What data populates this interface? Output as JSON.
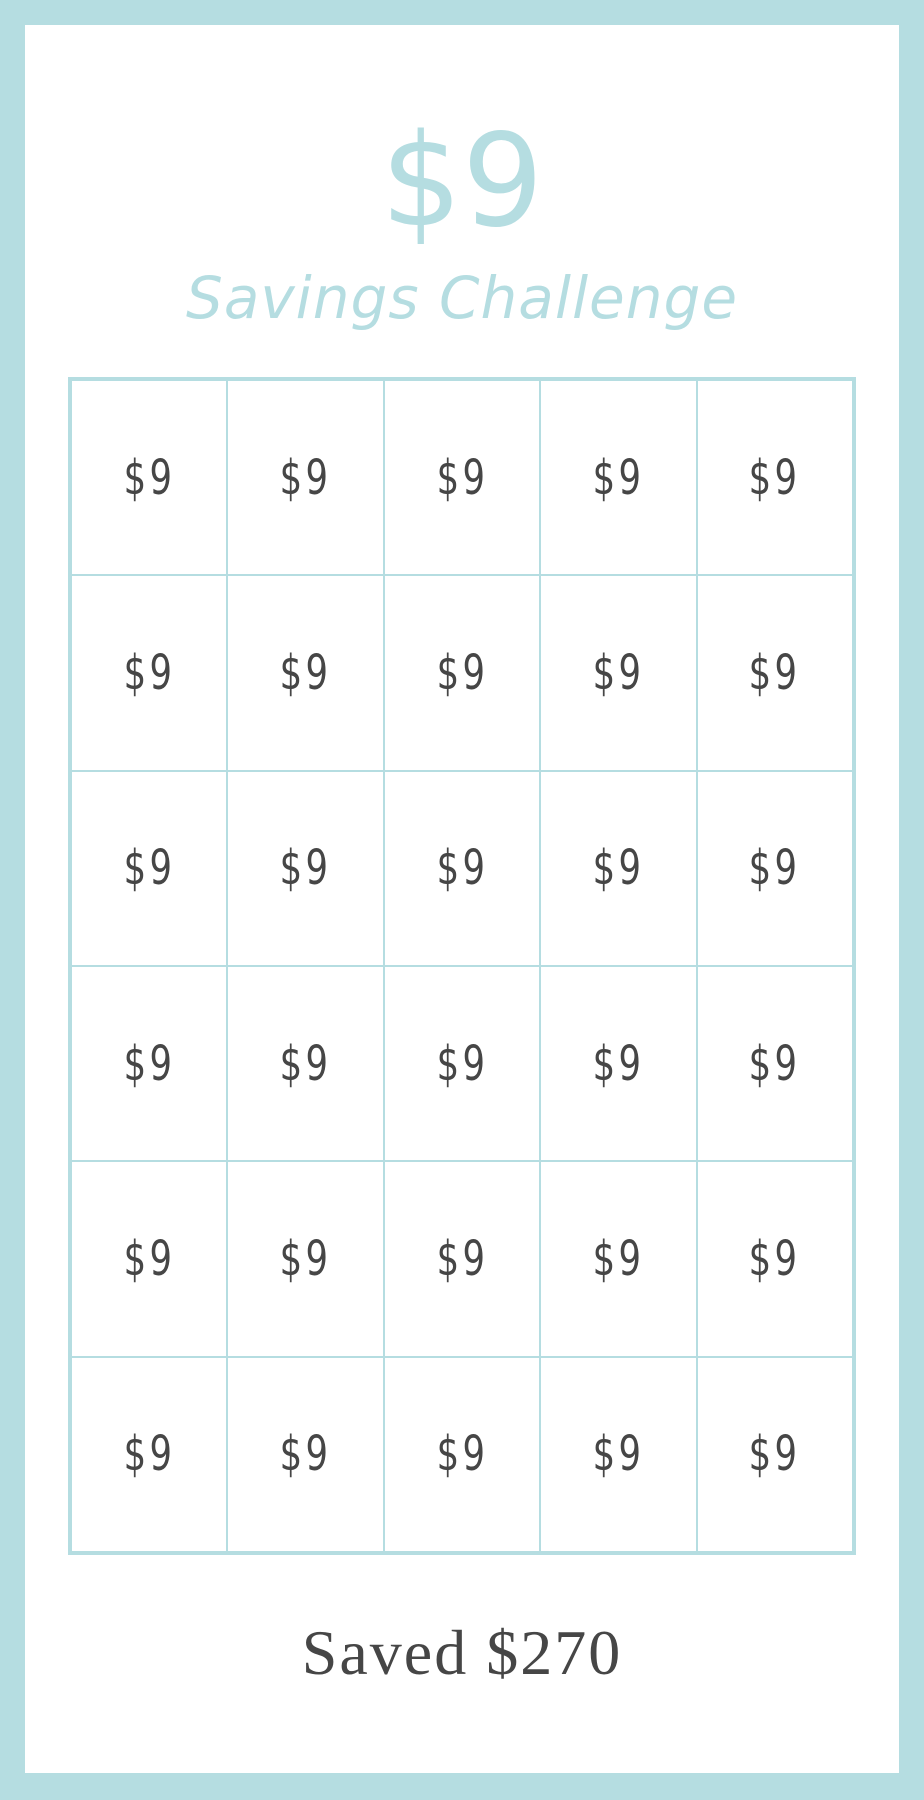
{
  "header": {
    "amount": "$9",
    "subtitle": "Savings Challenge"
  },
  "grid": {
    "cells": [
      "$9",
      "$9",
      "$9",
      "$9",
      "$9",
      "$9",
      "$9",
      "$9",
      "$9",
      "$9",
      "$9",
      "$9",
      "$9",
      "$9",
      "$9",
      "$9",
      "$9",
      "$9",
      "$9",
      "$9",
      "$9",
      "$9",
      "$9",
      "$9",
      "$9",
      "$9",
      "$9",
      "$9",
      "$9",
      "$9"
    ]
  },
  "footer": {
    "saved": "Saved $270"
  },
  "colors": {
    "accent": "#b5dde1",
    "text": "#464646"
  }
}
